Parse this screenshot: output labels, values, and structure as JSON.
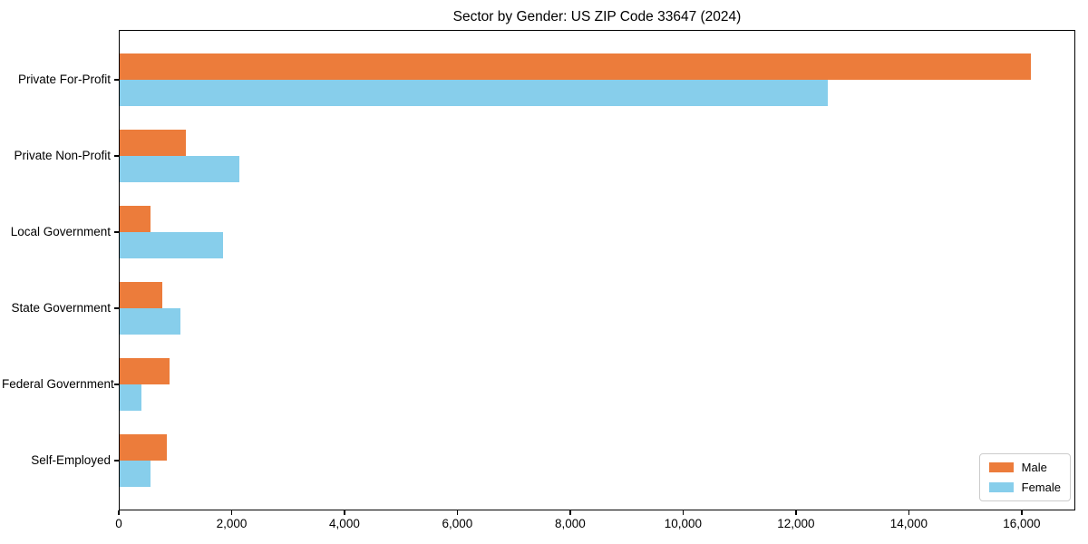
{
  "chart_data": {
    "type": "bar",
    "orientation": "horizontal",
    "title": "Sector by Gender: US ZIP Code 33647 (2024)",
    "categories": [
      "Private For-Profit",
      "Private Non-Profit",
      "Local Government",
      "State Government",
      "Federal Government",
      "Self-Employed"
    ],
    "series": [
      {
        "name": "Male",
        "color": "#ec7c3b",
        "values": [
          16150,
          1170,
          550,
          760,
          880,
          830
        ]
      },
      {
        "name": "Female",
        "color": "#87ceeb",
        "values": [
          12550,
          2120,
          1830,
          1070,
          390,
          540
        ]
      }
    ],
    "xlabel": "",
    "ylabel": "",
    "xlim": [
      0,
      16950
    ],
    "xticks": [
      0,
      2000,
      4000,
      6000,
      8000,
      10000,
      12000,
      14000,
      16000
    ],
    "xtick_labels": [
      "0",
      "2,000",
      "4,000",
      "6,000",
      "8,000",
      "10,000",
      "12,000",
      "14,000",
      "16,000"
    ],
    "grid": false,
    "plot_background": "#ffffff",
    "axis_color": "#000000",
    "legend": {
      "position": "lower right",
      "entries": [
        "Male",
        "Female"
      ]
    }
  }
}
